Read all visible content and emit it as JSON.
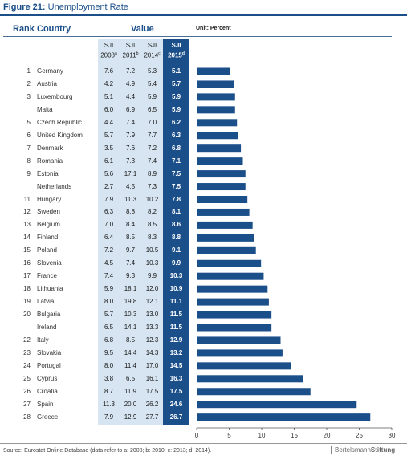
{
  "figure": {
    "label": "Figure 21:",
    "title": "Unemployment Rate"
  },
  "header": {
    "rank": "Rank",
    "country": "Country",
    "value": "Value",
    "unit": "Unit: Percent"
  },
  "columns": [
    {
      "line1": "SJI",
      "line2": "2008",
      "sup": "a"
    },
    {
      "line1": "SJI",
      "line2": "2011",
      "sup": "b"
    },
    {
      "line1": "SJI",
      "line2": "2014",
      "sup": "c"
    },
    {
      "line1": "SJI",
      "line2": "2015",
      "sup": "d"
    }
  ],
  "colors": {
    "bar": "#1b4f8a",
    "light_column": "#d6e5f1",
    "dark_column": "#1b4f8a"
  },
  "chart_data": {
    "type": "bar",
    "orientation": "horizontal",
    "categories": [
      "Germany",
      "Austria",
      "Luxembourg",
      "Malta",
      "Czech Republic",
      "United Kingdom",
      "Denmark",
      "Romania",
      "Estonia",
      "Netherlands",
      "Hungary",
      "Sweden",
      "Belgium",
      "Finland",
      "Poland",
      "Slovenia",
      "France",
      "Lithuania",
      "Latvia",
      "Bulgaria",
      "Ireland",
      "Italy",
      "Slovakia",
      "Portugal",
      "Cyprus",
      "Croatia",
      "Spain",
      "Greece"
    ],
    "ranks": [
      "1",
      "2",
      "3",
      "",
      "5",
      "6",
      "7",
      "8",
      "9",
      "",
      "11",
      "12",
      "13",
      "14",
      "15",
      "16",
      "17",
      "18",
      "19",
      "20",
      "",
      "22",
      "23",
      "24",
      "25",
      "26",
      "27",
      "28"
    ],
    "table": {
      "sji_2008": [
        "7.6",
        "4.2",
        "5.1",
        "6.0",
        "4.4",
        "5.7",
        "3.5",
        "6.1",
        "5.6",
        "2.7",
        "7.9",
        "6.3",
        "7.0",
        "6.4",
        "7.2",
        "4.5",
        "7.4",
        "5.9",
        "8.0",
        "5.7",
        "6.5",
        "6.8",
        "9.5",
        "8.0",
        "3.8",
        "8.7",
        "11.3",
        "7.9"
      ],
      "sji_2011": [
        "7.2",
        "4.9",
        "4.4",
        "6.9",
        "7.4",
        "7.9",
        "7.6",
        "7.3",
        "17.1",
        "4.5",
        "11.3",
        "8.8",
        "8.4",
        "8.5",
        "9.7",
        "7.4",
        "9.3",
        "18.1",
        "19.8",
        "10.3",
        "14.1",
        "8.5",
        "14.4",
        "11.4",
        "6.5",
        "11.9",
        "20.0",
        "12.9"
      ],
      "sji_2014": [
        "5.3",
        "5.4",
        "5.9",
        "6.5",
        "7.0",
        "7.7",
        "7.2",
        "7.4",
        "8.9",
        "7.3",
        "10.2",
        "8.2",
        "8.5",
        "8.3",
        "10.5",
        "10.3",
        "9.9",
        "12.0",
        "12.1",
        "13.0",
        "13.3",
        "12.3",
        "14.3",
        "17.0",
        "16.1",
        "17.5",
        "26.2",
        "27.7"
      ],
      "sji_2015": [
        "5.1",
        "5.7",
        "5.9",
        "5.9",
        "6.2",
        "6.3",
        "6.8",
        "7.1",
        "7.5",
        "7.5",
        "7.8",
        "8.1",
        "8.6",
        "8.8",
        "9.1",
        "9.9",
        "10.3",
        "10.9",
        "11.1",
        "11.5",
        "11.5",
        "12.9",
        "13.2",
        "14.5",
        "16.3",
        "17.5",
        "24.6",
        "26.7"
      ]
    },
    "series": [
      {
        "values": [
          5.1,
          5.7,
          5.9,
          5.9,
          6.2,
          6.3,
          6.8,
          7.1,
          7.5,
          7.5,
          7.8,
          8.1,
          8.6,
          8.8,
          9.1,
          9.9,
          10.3,
          10.9,
          11.1,
          11.5,
          11.5,
          12.9,
          13.2,
          14.5,
          16.3,
          17.5,
          24.6,
          26.7
        ]
      }
    ],
    "xlim": [
      0,
      30
    ],
    "xticks": [
      "0",
      "5",
      "10",
      "15",
      "20",
      "25",
      "30"
    ],
    "grid": false
  },
  "footer": {
    "source": "Source: Eurostat Online Database (data refer to a: 2008; b: 2010; c: 2013; d: 2014).",
    "logo_part1": "Bertelsmann",
    "logo_part2": "Stiftung"
  }
}
